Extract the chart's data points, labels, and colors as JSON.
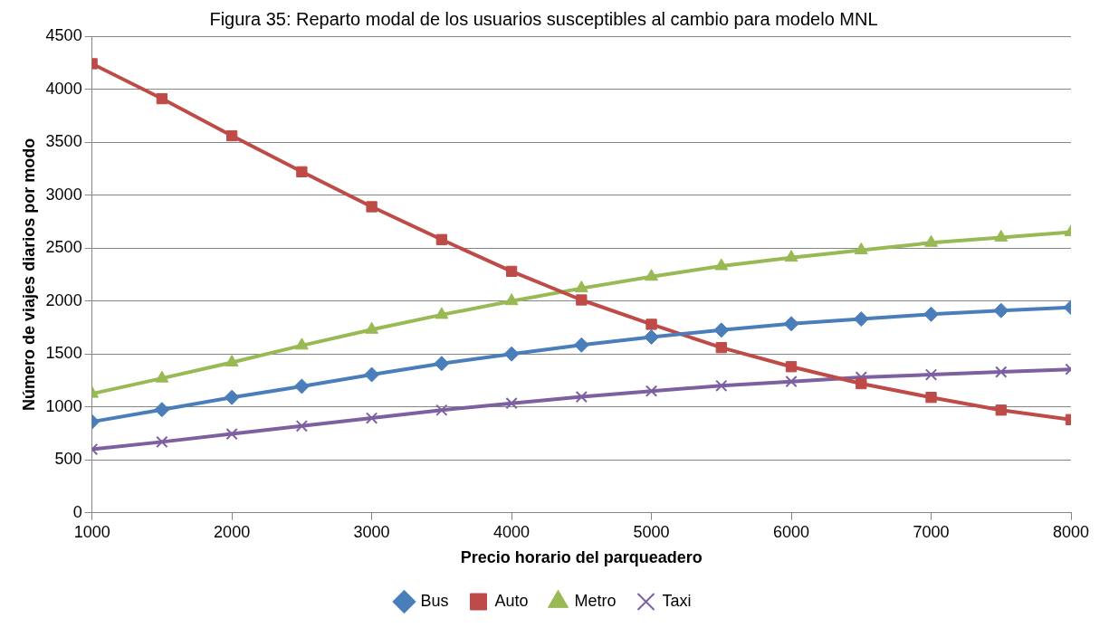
{
  "chart_data": {
    "type": "line",
    "title": "Figura 35: Reparto modal de los usuarios susceptibles al cambio para modelo MNL",
    "xlabel": "Precio horario del parqueadero",
    "ylabel": "Número de viajes diarios por modo",
    "x": [
      1000,
      1500,
      2000,
      2500,
      3000,
      3500,
      4000,
      4500,
      5000,
      5500,
      6000,
      6500,
      7000,
      7500,
      8000
    ],
    "xlim": [
      1000,
      8000
    ],
    "xticks": [
      1000,
      2000,
      3000,
      4000,
      5000,
      6000,
      7000,
      8000
    ],
    "ylim": [
      0,
      4500
    ],
    "yticks": [
      0,
      500,
      1000,
      1500,
      2000,
      2500,
      3000,
      3500,
      4000,
      4500
    ],
    "grid": "y",
    "legend": "bottom",
    "line_style": "solid",
    "series": [
      {
        "name": "Bus",
        "color": "#4a7ebb",
        "marker": "diamond",
        "values": [
          860,
          975,
          1090,
          1195,
          1305,
          1410,
          1500,
          1585,
          1660,
          1725,
          1785,
          1830,
          1875,
          1910,
          1940
        ]
      },
      {
        "name": "Auto",
        "color": "#be4b48",
        "marker": "square",
        "values": [
          4240,
          3910,
          3560,
          3220,
          2890,
          2580,
          2280,
          2010,
          1780,
          1560,
          1380,
          1220,
          1090,
          970,
          880
        ]
      },
      {
        "name": "Metro",
        "color": "#98b954",
        "marker": "triangle",
        "values": [
          1125,
          1270,
          1420,
          1580,
          1730,
          1870,
          2000,
          2120,
          2230,
          2330,
          2410,
          2480,
          2550,
          2600,
          2650
        ]
      },
      {
        "name": "Taxi",
        "color": "#7d60a0",
        "marker": "cross",
        "values": [
          600,
          670,
          745,
          820,
          895,
          970,
          1035,
          1095,
          1150,
          1200,
          1240,
          1280,
          1305,
          1330,
          1355
        ]
      }
    ]
  }
}
